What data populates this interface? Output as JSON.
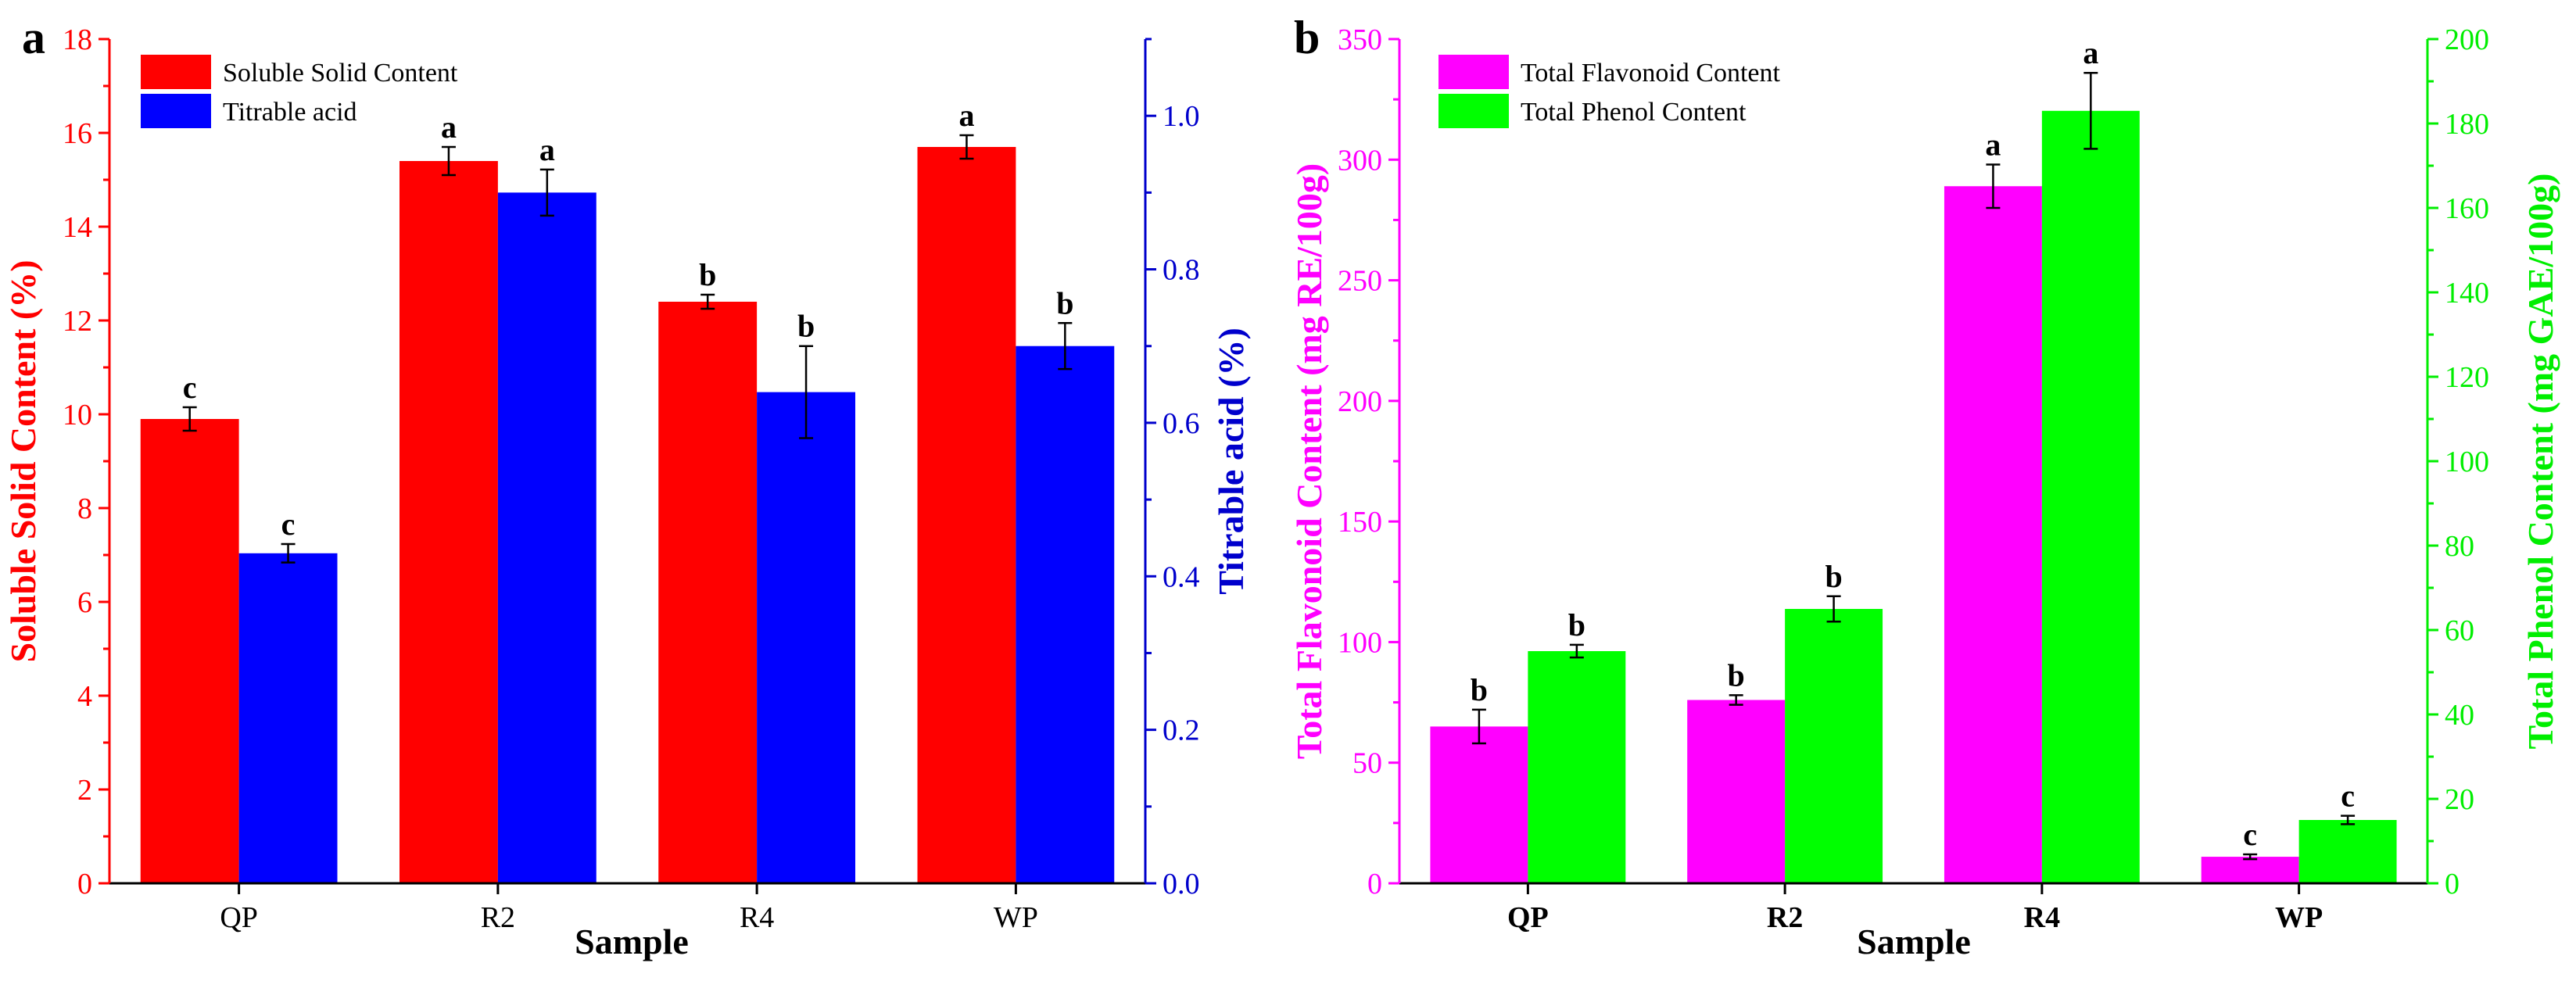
{
  "chart_data": [
    {
      "panel": "a",
      "type": "bar",
      "xlabel": "Sample",
      "categories": [
        "QP",
        "R2",
        "R4",
        "WP"
      ],
      "y_left": {
        "label": "Soluble Solid Content (%)",
        "ylim": [
          0,
          18
        ],
        "ticks": [
          "0",
          "2",
          "4",
          "6",
          "8",
          "10",
          "12",
          "14",
          "16",
          "18"
        ],
        "color": "#ff0000"
      },
      "y_right": {
        "label": "Titrable acid (%)",
        "ylim": [
          0,
          1.1
        ],
        "ticks": [
          "0.0",
          "0.2",
          "0.4",
          "0.6",
          "0.8",
          "1.0"
        ],
        "color": "#0000cc"
      },
      "series": [
        {
          "name": "Soluble Solid Content",
          "axis": "left",
          "color": "#ff0000",
          "values": [
            9.9,
            15.4,
            12.4,
            15.7
          ],
          "errors": [
            0.25,
            0.3,
            0.15,
            0.25
          ],
          "labels": [
            "c",
            "a",
            "b",
            "a"
          ]
        },
        {
          "name": "Titrable acid",
          "axis": "right",
          "color": "#0000ff",
          "values": [
            0.43,
            0.9,
            0.64,
            0.7
          ],
          "errors": [
            0.012,
            0.03,
            0.06,
            0.03
          ],
          "labels": [
            "c",
            "a",
            "b",
            "b"
          ]
        }
      ],
      "legend": "top-left"
    },
    {
      "panel": "b",
      "type": "bar",
      "xlabel": "Sample",
      "categories": [
        "QP",
        "R2",
        "R4",
        "WP"
      ],
      "y_left": {
        "label": "Total Flavonoid Content (mg RE/100g)",
        "ylim": [
          0,
          350
        ],
        "ticks": [
          "0",
          "50",
          "100",
          "150",
          "200",
          "250",
          "300",
          "350"
        ],
        "color": "#ff00ff"
      },
      "y_right": {
        "label": "Total Phenol Content (mg GAE/100g)",
        "ylim": [
          0,
          200
        ],
        "ticks": [
          "0",
          "20",
          "40",
          "60",
          "80",
          "100",
          "120",
          "140",
          "160",
          "180",
          "200"
        ],
        "color": "#00ee00"
      },
      "series": [
        {
          "name": "Total Flavonoid Content",
          "axis": "left",
          "color": "#ff00ff",
          "values": [
            65,
            76,
            289,
            11
          ],
          "errors": [
            7,
            2,
            9,
            1
          ],
          "labels": [
            "b",
            "b",
            "a",
            "c"
          ]
        },
        {
          "name": "Total Phenol Content",
          "axis": "right",
          "color": "#00ff00",
          "values": [
            55,
            65,
            183,
            15
          ],
          "errors": [
            1.5,
            3,
            9,
            1
          ],
          "labels": [
            "b",
            "b",
            "a",
            "c"
          ]
        }
      ],
      "legend": "top-left"
    }
  ]
}
